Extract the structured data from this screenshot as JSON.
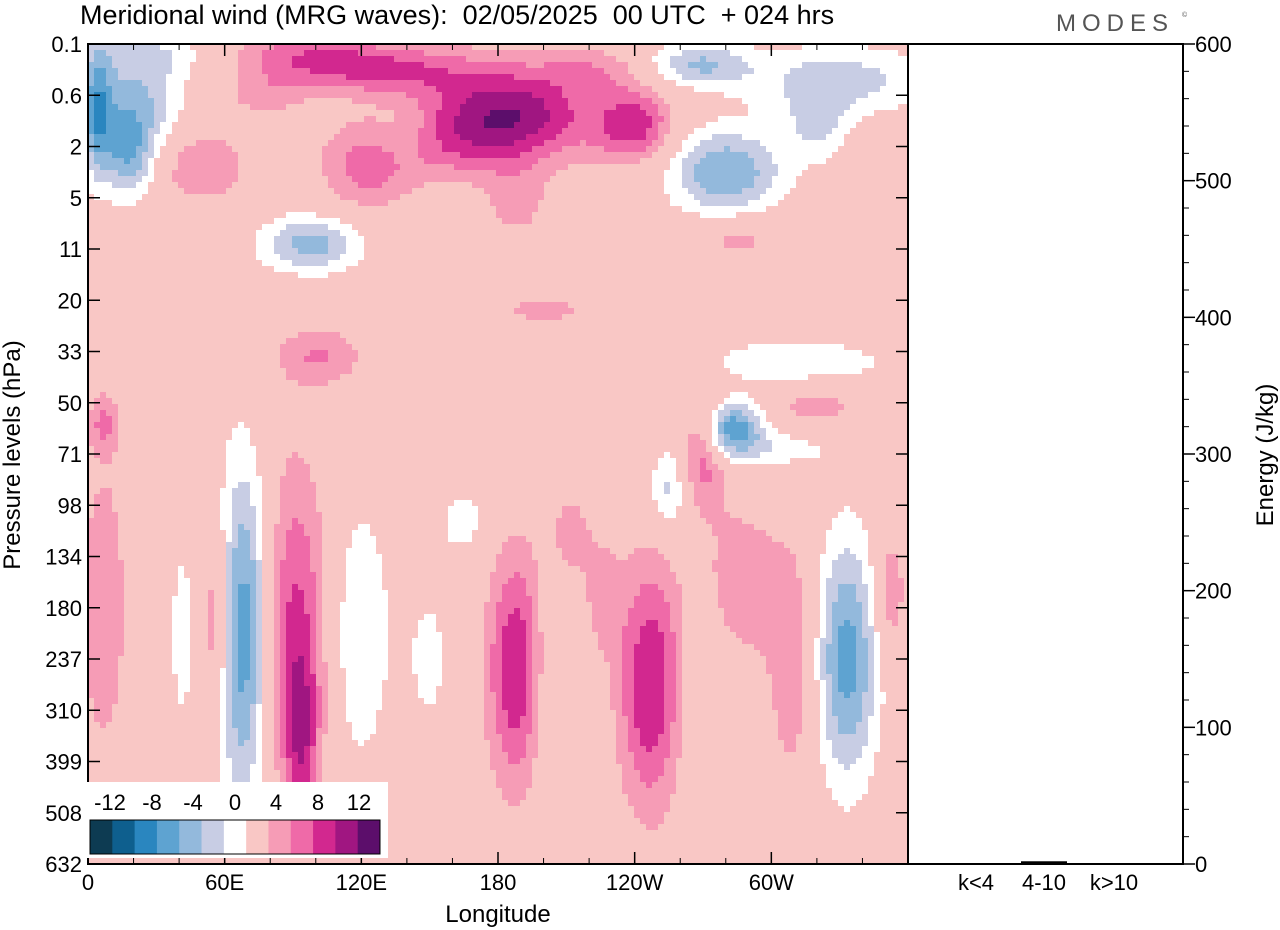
{
  "header": {
    "title": "Meridional wind (MRG waves):  02/05/2025  00 UTC  + 024 hrs",
    "brand": "MODES",
    "brand_mark": "©"
  },
  "chart_data": [
    {
      "type": "heatmap",
      "title": "Meridional wind (MRG waves):  02/05/2025  00 UTC  + 024 hrs",
      "xlabel": "Longitude",
      "ylabel": "Pressure levels (hPa)",
      "x_ticks": [
        "0",
        "60E",
        "120E",
        "180",
        "120W",
        "60W"
      ],
      "x_tick_values": [
        0,
        60,
        120,
        180,
        240,
        300
      ],
      "xlim": [
        0,
        360
      ],
      "y_ticks": [
        "0.1",
        "0.6",
        "2",
        "5",
        "11",
        "20",
        "33",
        "50",
        "71",
        "98",
        "134",
        "180",
        "237",
        "310",
        "399",
        "508",
        "632"
      ],
      "y_scale": "model levels (top 0.1 hPa, bottom 632 hPa)",
      "colorbar": {
        "labels": [
          "-12",
          "-8",
          "-4",
          "0",
          "4",
          "8",
          "12"
        ],
        "levels": [
          -14,
          -12,
          -10,
          -8,
          -6,
          -4,
          -2,
          2,
          4,
          6,
          8,
          10,
          12,
          14
        ],
        "colors": [
          "#0d3b52",
          "#0e5f8e",
          "#2a86bf",
          "#5ea3d1",
          "#93b9dc",
          "#c8cde4",
          "#ffffff",
          "#f9c7c5",
          "#f69cb6",
          "#ef6aa8",
          "#d2288f",
          "#a01681",
          "#5c0e6b"
        ],
        "placement": "bottom-left"
      },
      "blobs": [
        {
          "lon": 4,
          "lev": 1.3,
          "sx": 5,
          "sy": 0.9,
          "v": -8
        },
        {
          "lon": 22,
          "lev": 1.1,
          "sx": 14,
          "sy": 0.7,
          "v": -6
        },
        {
          "lon": 18,
          "lev": 2.2,
          "sx": 8,
          "sy": 0.6,
          "v": -7
        },
        {
          "lon": 30,
          "lev": 0.2,
          "sx": 22,
          "sy": 0.3,
          "v": -3
        },
        {
          "lon": 50,
          "lev": 2.4,
          "sx": 14,
          "sy": 0.5,
          "v": 4
        },
        {
          "lon": 78,
          "lev": 1.0,
          "sx": 12,
          "sy": 0.3,
          "v": 3
        },
        {
          "lon": 92,
          "lev": 0.2,
          "sx": 24,
          "sy": 0.3,
          "v": 4
        },
        {
          "lon": 128,
          "lev": 0.5,
          "sx": 30,
          "sy": 0.35,
          "v": 6
        },
        {
          "lon": 185,
          "lev": 1.3,
          "sx": 26,
          "sy": 0.6,
          "v": 9
        },
        {
          "lon": 160,
          "lev": 2.0,
          "sx": 30,
          "sy": 0.5,
          "v": 4
        },
        {
          "lon": 240,
          "lev": 1.6,
          "sx": 12,
          "sy": 0.5,
          "v": 7
        },
        {
          "lon": 222,
          "lev": 0.5,
          "sx": 16,
          "sy": 0.3,
          "v": 3
        },
        {
          "lon": 268,
          "lev": 0.4,
          "sx": 16,
          "sy": 0.3,
          "v": -6
        },
        {
          "lon": 330,
          "lev": 0.7,
          "sx": 30,
          "sy": 0.5,
          "v": -5
        },
        {
          "lon": 320,
          "lev": 1.6,
          "sx": 10,
          "sy": 0.5,
          "v": -4
        },
        {
          "lon": 280,
          "lev": 2.5,
          "sx": 18,
          "sy": 0.6,
          "v": -8
        },
        {
          "lon": 122,
          "lev": 2.5,
          "sx": 14,
          "sy": 0.6,
          "v": 4
        },
        {
          "lon": 138,
          "lev": 1.8,
          "sx": 10,
          "sy": 0.4,
          "v": -2.5
        },
        {
          "lon": 188,
          "lev": 3.1,
          "sx": 10,
          "sy": 0.5,
          "v": 3
        },
        {
          "lon": 98,
          "lev": 3.9,
          "sx": 16,
          "sy": 0.4,
          "v": -7
        },
        {
          "lon": 285,
          "lev": 3.8,
          "sx": 14,
          "sy": 0.3,
          "v": 3
        },
        {
          "lon": 200,
          "lev": 5.2,
          "sx": 14,
          "sy": 0.2,
          "v": 3
        },
        {
          "lon": 102,
          "lev": 6.1,
          "sx": 14,
          "sy": 0.4,
          "v": 4
        },
        {
          "lon": 310,
          "lev": 6.2,
          "sx": 30,
          "sy": 0.3,
          "v": -4
        },
        {
          "lon": 282,
          "lev": 7.5,
          "sx": 10,
          "sy": 0.4,
          "v": -10
        },
        {
          "lon": 305,
          "lev": 7.9,
          "sx": 18,
          "sy": 0.3,
          "v": -3
        },
        {
          "lon": 320,
          "lev": 7.1,
          "sx": 14,
          "sy": 0.3,
          "v": 3
        },
        {
          "lon": 7,
          "lev": 7.4,
          "sx": 5,
          "sy": 0.4,
          "v": 4
        },
        {
          "lon": 270,
          "lev": 7.8,
          "sx": 7,
          "sy": 0.8,
          "v": 6
        },
        {
          "lon": 255,
          "lev": 8.7,
          "sx": 6,
          "sy": 0.6,
          "v": -5
        },
        {
          "lon": 68,
          "lev": 11.5,
          "sx": 9,
          "sy": 2.3,
          "v": -11
        },
        {
          "lon": 90,
          "lev": 11.5,
          "sx": 12,
          "sy": 2.3,
          "v": 7
        },
        {
          "lon": 94,
          "lev": 13.6,
          "sx": 5,
          "sy": 1.2,
          "v": 5
        },
        {
          "lon": 56,
          "lev": 11.3,
          "sx": 6,
          "sy": 1.5,
          "v": 6
        },
        {
          "lon": 7,
          "lev": 11,
          "sx": 7,
          "sy": 2.0,
          "v": 4
        },
        {
          "lon": 118,
          "lev": 11.5,
          "sx": 11,
          "sy": 2.0,
          "v": -4
        },
        {
          "lon": 188,
          "lev": 12.2,
          "sx": 9,
          "sy": 1.6,
          "v": 8
        },
        {
          "lon": 247,
          "lev": 12.5,
          "sx": 10,
          "sy": 1.7,
          "v": 8
        },
        {
          "lon": 278,
          "lev": 11.8,
          "sx": 10,
          "sy": 1.9,
          "v": 3.5
        },
        {
          "lon": 333,
          "lev": 12.0,
          "sx": 10,
          "sy": 1.7,
          "v": -9
        },
        {
          "lon": 352,
          "lev": 10.7,
          "sx": 5,
          "sy": 0.9,
          "v": 4
        },
        {
          "lon": 212,
          "lev": 9.6,
          "sx": 7,
          "sy": 0.7,
          "v": 3
        },
        {
          "lon": 165,
          "lev": 9.3,
          "sx": 8,
          "sy": 0.5,
          "v": -3
        },
        {
          "lon": 205,
          "lev": 12.5,
          "sx": 8,
          "sy": 1.5,
          "v": -2.5
        },
        {
          "lon": 275,
          "lev": 12.8,
          "sx": 10,
          "sy": 1.5,
          "v": -4
        },
        {
          "lon": 292,
          "lev": 10.5,
          "sx": 9,
          "sy": 1.0,
          "v": 2.5
        },
        {
          "lon": 310,
          "lev": 12.0,
          "sx": 8,
          "sy": 1.7,
          "v": 4
        },
        {
          "lon": 150,
          "lev": 12.0,
          "sx": 8,
          "sy": 1.3,
          "v": -2.5
        },
        {
          "lon": 42,
          "lev": 11.5,
          "sx": 5,
          "sy": 1.6,
          "v": -3
        },
        {
          "lon": 226,
          "lev": 10.8,
          "sx": 6,
          "sy": 0.8,
          "v": 3
        }
      ]
    },
    {
      "type": "bar",
      "categories": [
        "k<4",
        "4-10",
        "k>10"
      ],
      "values": [
        0,
        2,
        0
      ],
      "ylabel": "Energy (J/kg)",
      "ylim": [
        0,
        600
      ],
      "y_ticks": [
        "0",
        "100",
        "200",
        "300",
        "400",
        "500",
        "600"
      ],
      "y_tick_values": [
        0,
        100,
        200,
        300,
        400,
        500,
        600
      ]
    }
  ]
}
